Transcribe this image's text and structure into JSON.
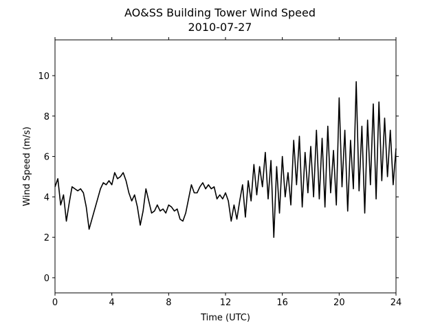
{
  "chart_data": {
    "type": "line",
    "title": "AO&SS Building Tower Wind Speed",
    "subtitle": "2010-07-27",
    "x_label": "Time (UTC)",
    "y_label": "Wind Speed (m/s)",
    "xlim": [
      0,
      24
    ],
    "xticks": [
      0,
      4,
      8,
      12,
      16,
      20,
      24
    ],
    "ylim": [
      -0.75,
      11.77
    ],
    "yticks": [
      0,
      2,
      4,
      6,
      8,
      10
    ],
    "x": [
      0,
      0.2,
      0.4,
      0.6,
      0.8,
      1,
      1.2,
      1.4,
      1.6,
      1.8,
      2,
      2.2,
      2.4,
      2.6,
      2.8,
      3,
      3.2,
      3.4,
      3.6,
      3.8,
      4,
      4.2,
      4.4,
      4.6,
      4.8,
      5,
      5.2,
      5.4,
      5.6,
      5.8,
      6,
      6.2,
      6.4,
      6.6,
      6.8,
      7,
      7.2,
      7.4,
      7.6,
      7.8,
      8,
      8.2,
      8.4,
      8.6,
      8.8,
      9,
      9.2,
      9.4,
      9.6,
      9.8,
      10,
      10.2,
      10.4,
      10.6,
      10.8,
      11,
      11.2,
      11.4,
      11.6,
      11.8,
      12,
      12.2,
      12.4,
      12.6,
      12.8,
      13,
      13.2,
      13.4,
      13.6,
      13.8,
      14,
      14.2,
      14.4,
      14.6,
      14.8,
      15,
      15.2,
      15.4,
      15.6,
      15.8,
      16,
      16.2,
      16.4,
      16.6,
      16.8,
      17,
      17.2,
      17.4,
      17.6,
      17.8,
      18,
      18.2,
      18.4,
      18.6,
      18.8,
      19,
      19.2,
      19.4,
      19.6,
      19.8,
      20,
      20.2,
      20.4,
      20.6,
      20.8,
      21,
      21.2,
      21.4,
      21.6,
      21.8,
      22,
      22.2,
      22.4,
      22.6,
      22.8,
      23,
      23.2,
      23.4,
      23.6,
      23.8,
      24
    ],
    "series": [
      {
        "color": "#000000",
        "values": [
          4.5,
          4.9,
          3.6,
          4.1,
          2.8,
          3.7,
          4.5,
          4.4,
          4.3,
          4.4,
          4.2,
          3.5,
          2.4,
          2.9,
          3.4,
          3.9,
          4.4,
          4.7,
          4.6,
          4.8,
          4.6,
          5.2,
          4.9,
          5.0,
          5.2,
          4.8,
          4.2,
          3.8,
          4.1,
          3.5,
          2.6,
          3.3,
          4.4,
          3.8,
          3.2,
          3.3,
          3.6,
          3.3,
          3.4,
          3.2,
          3.6,
          3.5,
          3.3,
          3.4,
          2.9,
          2.8,
          3.2,
          3.9,
          4.6,
          4.2,
          4.2,
          4.5,
          4.7,
          4.4,
          4.6,
          4.4,
          4.5,
          3.9,
          4.1,
          3.9,
          4.2,
          3.8,
          2.8,
          3.6,
          2.9,
          3.8,
          4.6,
          3.0,
          4.8,
          3.8,
          5.6,
          4.1,
          5.5,
          4.5,
          6.2,
          3.9,
          5.8,
          2.0,
          5.5,
          3.2,
          6.0,
          4.0,
          5.2,
          3.6,
          6.8,
          4.6,
          7.0,
          3.5,
          6.2,
          4.2,
          6.5,
          4.0,
          7.3,
          3.9,
          6.9,
          3.5,
          7.5,
          4.2,
          6.3,
          3.6,
          8.9,
          4.5,
          7.3,
          3.3,
          6.8,
          4.4,
          9.7,
          4.3,
          7.5,
          3.2,
          7.8,
          4.6,
          8.6,
          3.9,
          8.7,
          4.8,
          7.9,
          5.0,
          7.3,
          4.6,
          6.4
        ]
      }
    ]
  }
}
